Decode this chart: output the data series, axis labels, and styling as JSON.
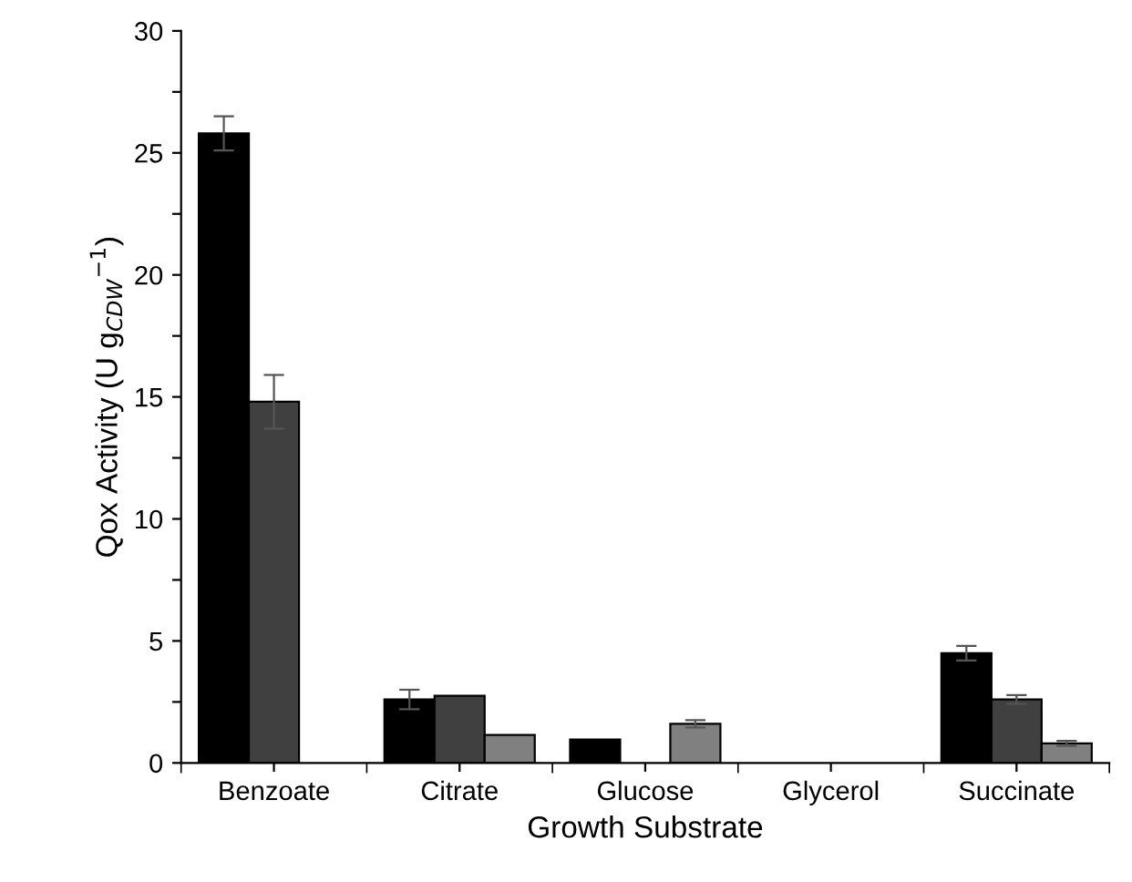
{
  "chart_data": {
    "type": "bar",
    "xlabel": "Growth Substrate",
    "ylabel": "Qox Activity (U g$_{CDW}$$^{−1}$)",
    "categories": [
      "Benzoate",
      "Citrate",
      "Glucose",
      "Glycerol",
      "Succinate"
    ],
    "series": [
      {
        "color": "#000000",
        "values": [
          25.8,
          2.6,
          0.96,
          null,
          4.5
        ],
        "errors": [
          0.7,
          0.4,
          null,
          null,
          0.3
        ]
      },
      {
        "color": "#404040",
        "values": [
          14.8,
          2.75,
          null,
          null,
          2.6
        ],
        "errors": [
          1.1,
          null,
          null,
          null,
          0.18
        ]
      },
      {
        "color": "#808080",
        "values": [
          null,
          1.15,
          1.6,
          null,
          0.8
        ],
        "errors": [
          null,
          null,
          0.15,
          null,
          0.1
        ]
      }
    ],
    "ylim": [
      0,
      30
    ],
    "yticks": [
      0,
      {
        "value": 2.5,
        "label": null
      },
      5,
      {
        "value": 7.5,
        "label": null
      },
      10,
      {
        "value": 12.5,
        "label": null
      },
      15,
      {
        "value": 17.5,
        "label": null
      },
      20,
      {
        "value": 22.5,
        "label": null
      },
      25,
      {
        "value": 27.5,
        "label": null
      },
      30
    ],
    "grid": false,
    "legend": false
  }
}
